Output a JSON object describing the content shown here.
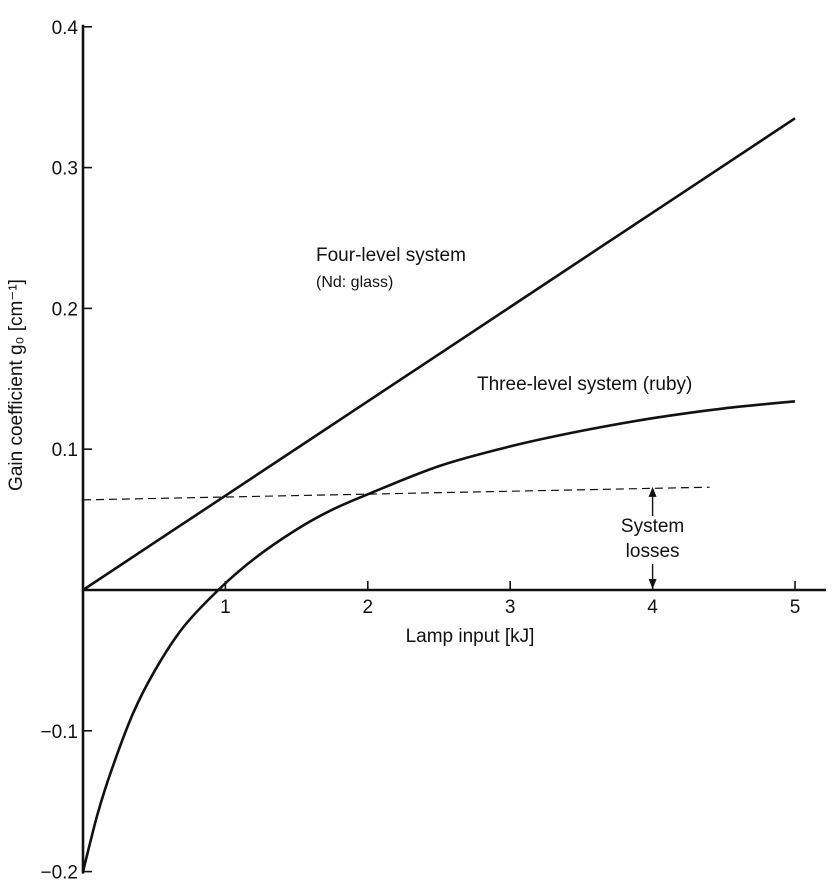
{
  "chart_data": {
    "type": "line",
    "title": "",
    "xlabel": "Lamp input [kJ]",
    "ylabel": "Gain coefficient g₀ [cm⁻¹]",
    "xlim": [
      0,
      5.3
    ],
    "ylim": [
      -0.2,
      0.4
    ],
    "x_ticks": [
      1,
      2,
      3,
      4,
      5
    ],
    "x_tick_labels": [
      "1",
      "2",
      "3",
      "4",
      "5"
    ],
    "y_ticks": [
      -0.2,
      -0.1,
      0.1,
      0.2,
      0.3,
      0.4
    ],
    "y_tick_labels": [
      "−0.2",
      "−0.1",
      "0.1",
      "0.2",
      "0.3",
      "0.4"
    ],
    "grid": false,
    "series": [
      {
        "name": "Four-level system",
        "sublabel": "(Nd: glass)",
        "style": "solid",
        "x": [
          0,
          1,
          2,
          3,
          4,
          5
        ],
        "y": [
          0,
          0.067,
          0.134,
          0.201,
          0.268,
          0.335
        ]
      },
      {
        "name": "Three-level system (ruby)",
        "style": "solid",
        "x": [
          0,
          0.1,
          0.2,
          0.35,
          0.5,
          0.7,
          0.95,
          1.2,
          1.5,
          1.75,
          2.0,
          2.5,
          3.0,
          3.5,
          4.0,
          4.5,
          5.0
        ],
        "y": [
          -0.2,
          -0.16,
          -0.128,
          -0.088,
          -0.058,
          -0.027,
          0.0,
          0.022,
          0.043,
          0.057,
          0.068,
          0.088,
          0.102,
          0.113,
          0.122,
          0.129,
          0.134
        ]
      },
      {
        "name": "System losses",
        "style": "dashed",
        "x": [
          0,
          4.4
        ],
        "y": [
          0.064,
          0.073
        ]
      }
    ],
    "annotations": [
      {
        "text": "System",
        "x": 4.0
      },
      {
        "text": "losses",
        "x": 4.0
      }
    ]
  }
}
